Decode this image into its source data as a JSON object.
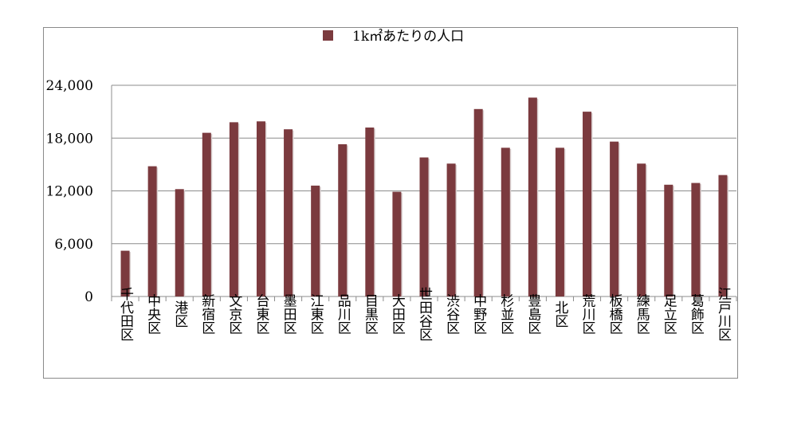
{
  "chart_data": {
    "type": "bar",
    "title": "",
    "xlabel": "",
    "ylabel": "",
    "legend_position": "top",
    "ylim": [
      0,
      24000
    ],
    "yticks": [
      0,
      6000,
      12000,
      18000,
      24000
    ],
    "ytick_labels": [
      "0",
      "6,000",
      "12,000",
      "18,000",
      "24,000"
    ],
    "grid": true,
    "series": [
      {
        "name": "1k㎡あたりの人口",
        "color": "#7b3a3e",
        "values": [
          5200,
          14800,
          12200,
          18600,
          19800,
          19900,
          19000,
          12600,
          17300,
          19200,
          11900,
          15800,
          15100,
          21300,
          16900,
          22600,
          16900,
          21000,
          17600,
          15100,
          12700,
          12900,
          13800
        ]
      }
    ],
    "categories": [
      "千代田区",
      "中央区",
      "港区",
      "新宿区",
      "文京区",
      "台東区",
      "墨田区",
      "江東区",
      "品川区",
      "目黒区",
      "大田区",
      "世田谷区",
      "渋谷区",
      "中野区",
      "杉並区",
      "豊島区",
      "北区",
      "荒川区",
      "板橋区",
      "練馬区",
      "足立区",
      "葛飾区",
      "江戸川区"
    ]
  }
}
